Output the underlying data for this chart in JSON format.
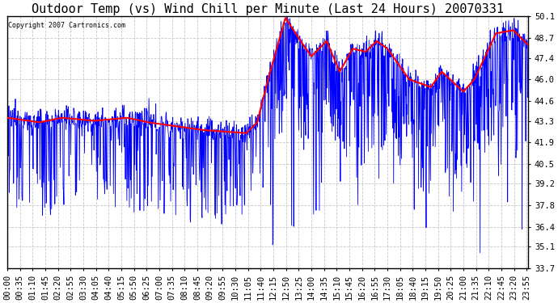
{
  "title": "Outdoor Temp (vs) Wind Chill per Minute (Last 24 Hours) 20070331",
  "copyright": "Copyright 2007 Cartronics.com",
  "ylim": [
    33.7,
    50.1
  ],
  "yticks": [
    33.7,
    35.1,
    36.4,
    37.8,
    39.2,
    40.5,
    41.9,
    43.3,
    44.6,
    46.0,
    47.4,
    48.7,
    50.1
  ],
  "bg_color": "#ffffff",
  "plot_bg_color": "#ffffff",
  "grid_color": "#c8c8c8",
  "line1_color": "#0000ff",
  "line2_color": "#ff0000",
  "title_fontsize": 11,
  "tick_fontsize": 7.5,
  "xtick_interval_min": 35,
  "n_minutes": 1440
}
